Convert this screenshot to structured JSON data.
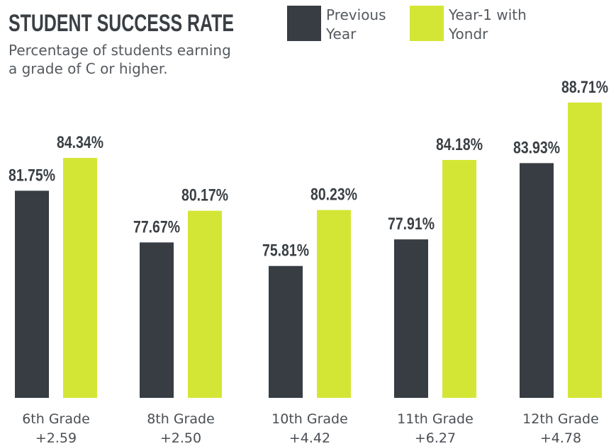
{
  "chart_data": {
    "type": "bar",
    "title": "STUDENT SUCCESS RATE",
    "subtitle": "Percentage of students earning a grade of C or higher.",
    "categories": [
      "6th Grade",
      "8th Grade",
      "10th Grade",
      "11th Grade",
      "12th Grade"
    ],
    "differences": [
      "+2.59",
      "+2.50",
      "+4.42",
      "+6.27",
      "+4.78"
    ],
    "series": [
      {
        "name": "Previous Year",
        "color": "#373d42",
        "values": [
          81.75,
          77.67,
          75.81,
          77.91,
          83.93
        ],
        "value_labels": [
          "81.75%",
          "77.67%",
          "75.81%",
          "77.91%",
          "83.93%"
        ]
      },
      {
        "name": "Year-1 with Yondr",
        "color": "#d4e635",
        "values": [
          84.34,
          80.17,
          80.23,
          84.18,
          88.71
        ],
        "value_labels": [
          "84.34%",
          "80.17%",
          "80.23%",
          "84.18%",
          "88.71%"
        ]
      }
    ],
    "ylim": [
      65.4,
      90
    ]
  }
}
